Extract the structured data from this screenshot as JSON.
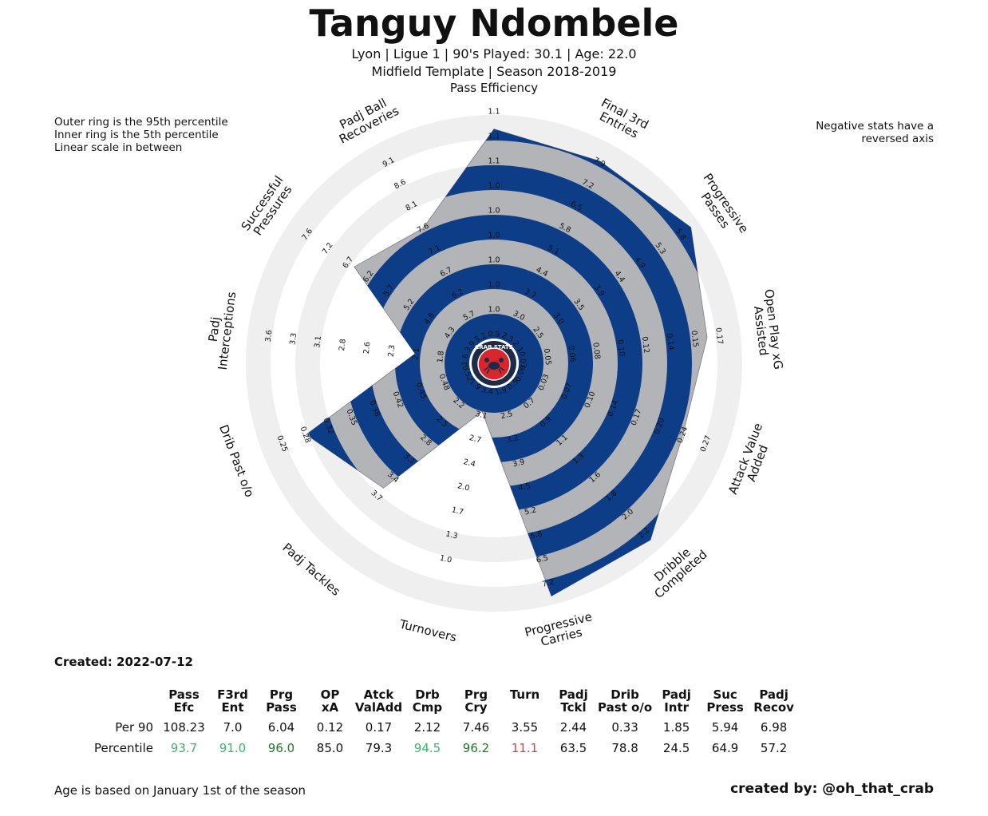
{
  "player": "Tanguy Ndombele",
  "subtitle1": "Lyon  | Ligue 1 | 90's Played: 30.1 | Age: 22.0",
  "subtitle2": "Midfield Template | Season 2018-2019",
  "notes": {
    "left": "Outer ring is the 95th percentile\nInner ring is the 5th percentile\nLinear scale in between",
    "right": "Negative stats have a\nreversed axis"
  },
  "created": "Created: 2022-07-12",
  "footer_left": "Age is based on January 1st of the season",
  "footer_right": "created by: @oh_that_crab",
  "logo_text": "CRAB STATS",
  "colors": {
    "blue": "#0d3d87",
    "gray": "#b2b4b8",
    "ring_light": "#efefef",
    "pct_green_light": "#3cb371",
    "pct_green_dark": "#1e7a1e",
    "pct_red": "#e0403a",
    "logo_red": "#d7262c",
    "logo_navy": "#1f2a44"
  },
  "chart_data": {
    "type": "radar",
    "axes": [
      {
        "label": "Pass Efficiency",
        "ticks": [
          "0.9",
          "1.0",
          "1.0",
          "1.0",
          "1.0",
          "1.0",
          "1.0",
          "1.1",
          "1.1",
          "1.1"
        ],
        "percentile": 93.7
      },
      {
        "label": "Final 3rd\nEntries",
        "ticks": [
          "2.3",
          "3.0",
          "3.7",
          "4.4",
          "5.1",
          "5.8",
          "6.5",
          "7.2",
          "7.9"
        ],
        "percentile": 91.0
      },
      {
        "label": "Progressive\nPasses",
        "ticks": [
          "2.1",
          "2.5",
          "3.0",
          "3.5",
          "3.9",
          "4.4",
          "4.9",
          "5.3",
          "5.8"
        ],
        "percentile": 96.0
      },
      {
        "label": "Open Play xG\nAssisted",
        "ticks": [
          "0.03",
          "0.05",
          "0.06",
          "0.08",
          "0.10",
          "0.12",
          "0.14",
          "0.15",
          "0.17"
        ],
        "percentile": 85.0
      },
      {
        "label": "Attack Value\nAdded",
        "ticks": [
          "0.00",
          "0.03",
          "0.07",
          "0.10",
          "0.14",
          "0.17",
          "0.20",
          "0.24",
          "0.27"
        ],
        "percentile": 79.3
      },
      {
        "label": "Dribble\nCompleted",
        "ticks": [
          "0.5",
          "0.7",
          "0.9",
          "1.1",
          "1.3",
          "1.6",
          "1.8",
          "2.0",
          "2.2"
        ],
        "percentile": 94.5
      },
      {
        "label": "Progressive\nCarries",
        "ticks": [
          "1.9",
          "2.5",
          "3.2",
          "3.9",
          "4.5",
          "5.2",
          "5.8",
          "6.5",
          "7.2"
        ],
        "percentile": 96.2
      },
      {
        "label": "Turnovers",
        "ticks": [
          "3.4",
          "3.1",
          "2.7",
          "2.4",
          "2.0",
          "1.7",
          "1.3",
          "1.0"
        ],
        "percentile": 11.1
      },
      {
        "label": "Padj Tackles",
        "ticks": [
          "1.9",
          "2.2",
          "2.5",
          "2.8",
          "3.1",
          "3.4",
          "3.7"
        ],
        "percentile": 63.5
      },
      {
        "label": "Drib Past o/o",
        "ticks": [
          "0.52",
          "0.48",
          "0.45",
          "0.42",
          "0.38",
          "0.35",
          "0.32",
          "0.28",
          "0.25"
        ],
        "percentile": 78.8
      },
      {
        "label": "Padj\nInterceptions",
        "ticks": [
          "1.6",
          "1.8",
          "2.1",
          "2.3",
          "2.6",
          "2.8",
          "3.1",
          "3.3",
          "3.6"
        ],
        "percentile": 24.5
      },
      {
        "label": "Successful\nPressures",
        "ticks": [
          "3.9",
          "4.3",
          "4.8",
          "5.2",
          "5.7",
          "6.2",
          "6.7",
          "7.2",
          "7.6"
        ],
        "percentile": 64.9
      },
      {
        "label": "Padj Ball\nRecoveries",
        "ticks": [
          "5.2",
          "5.7",
          "6.2",
          "6.7",
          "7.1",
          "7.6",
          "8.1",
          "8.6",
          "9.1"
        ],
        "percentile": 57.2
      }
    ]
  },
  "table": {
    "headers": [
      "Pass\nEfc",
      "F3rd\nEnt",
      "Prg\nPass",
      "OP\nxA",
      "Atck\nValAdd",
      "Drb\nCmp",
      "Prg\nCry",
      "Turn",
      "Padj\nTckl",
      "Drib\nPast o/o",
      "Padj\nIntr",
      "Suc\nPress",
      "Padj\nRecov"
    ],
    "row_labels": [
      "Per 90",
      "Percentile"
    ],
    "per90": [
      "108.23",
      "7.0",
      "6.04",
      "0.12",
      "0.17",
      "2.12",
      "7.46",
      "3.55",
      "2.44",
      "0.33",
      "1.85",
      "5.94",
      "6.98"
    ],
    "percentile": [
      "93.7",
      "91.0",
      "96.0",
      "85.0",
      "79.3",
      "94.5",
      "96.2",
      "11.1",
      "63.5",
      "78.8",
      "24.5",
      "64.9",
      "57.2"
    ]
  }
}
